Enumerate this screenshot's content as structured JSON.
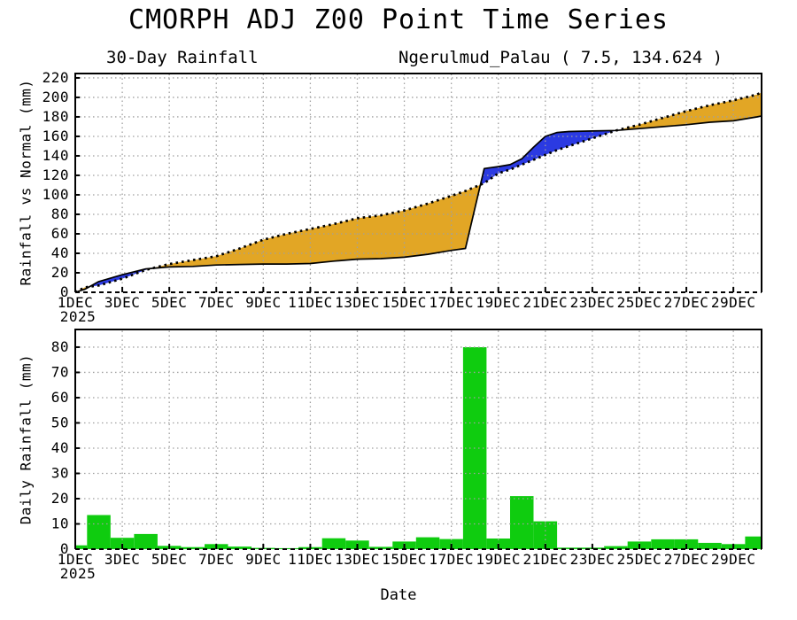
{
  "title": "CMORPH ADJ Z00 Point Time Series",
  "xlabel": "Date",
  "year_label": "2025",
  "chart_data": [
    {
      "type": "line",
      "title": "30-Day Rainfall",
      "station": "Ngerulmud_Palau ( 7.5, 134.624 )",
      "ylabel": "Rainfall vs Normal (mm)",
      "ylim": [
        0,
        224.5
      ],
      "xlim": [
        1,
        30.2
      ],
      "yticks": [
        0,
        20,
        40,
        60,
        80,
        100,
        120,
        140,
        160,
        180,
        200,
        220
      ],
      "xtick_days": [
        1,
        3,
        5,
        7,
        9,
        11,
        13,
        15,
        17,
        19,
        21,
        23,
        25,
        27,
        29
      ],
      "xtick_labels": [
        "1DEC",
        "3DEC",
        "5DEC",
        "7DEC",
        "9DEC",
        "11DEC",
        "13DEC",
        "15DEC",
        "17DEC",
        "19DEC",
        "21DEC",
        "23DEC",
        "25DEC",
        "27DEC",
        "29DEC"
      ],
      "grid": true,
      "x": [
        1,
        1.4,
        2,
        3,
        4,
        5,
        6,
        7,
        8,
        9,
        10,
        11,
        12,
        13,
        14,
        15,
        16,
        17,
        17.6,
        18.4,
        19,
        19.5,
        20,
        20.5,
        21,
        21.5,
        22,
        23,
        24,
        25,
        26,
        27,
        28,
        29,
        30,
        30.2
      ],
      "series": [
        {
          "name": "observed_cumulative_rainfall",
          "style": "solid",
          "color": "#000000",
          "values": [
            0,
            3,
            11,
            18,
            24,
            26,
            26.5,
            28,
            28.5,
            29,
            29,
            29.5,
            32,
            34,
            34.5,
            36,
            39,
            43,
            45,
            127,
            129,
            131,
            137,
            149,
            160,
            164,
            165,
            165.5,
            166.1,
            168,
            170,
            172,
            174.5,
            176,
            180,
            181
          ]
        },
        {
          "name": "normal_cumulative_rainfall",
          "style": "dotted",
          "color": "#000000",
          "values": [
            0,
            5,
            7,
            14,
            23,
            29,
            33,
            37,
            45,
            54,
            60,
            65,
            70,
            76,
            79,
            84,
            91,
            99,
            104,
            112,
            122,
            126,
            131,
            136,
            141,
            146,
            150,
            158,
            166,
            172,
            179,
            186,
            192,
            197,
            203,
            205
          ]
        }
      ],
      "fill_colors": {
        "observed_above_normal": "#2B3AE2",
        "normal_above_observed": "#E2A625"
      },
      "grid_color": "#A0A0A0"
    },
    {
      "type": "bar",
      "ylabel": "Daily Rainfall (mm)",
      "xlabel": "Date",
      "ylim": [
        0,
        87
      ],
      "xlim": [
        1,
        30.2
      ],
      "yticks": [
        0,
        10,
        20,
        30,
        40,
        50,
        60,
        70,
        80
      ],
      "xtick_days": [
        1,
        3,
        5,
        7,
        9,
        11,
        13,
        15,
        17,
        19,
        21,
        23,
        25,
        27,
        29
      ],
      "xtick_labels": [
        "1DEC",
        "3DEC",
        "5DEC",
        "7DEC",
        "9DEC",
        "11DEC",
        "13DEC",
        "15DEC",
        "17DEC",
        "19DEC",
        "21DEC",
        "23DEC",
        "25DEC",
        "27DEC",
        "29DEC"
      ],
      "grid": true,
      "days": [
        1,
        2,
        3,
        4,
        5,
        6,
        7,
        8,
        9,
        10,
        11,
        12,
        13,
        14,
        15,
        16,
        17,
        18,
        19,
        20,
        21,
        22,
        23,
        24,
        25,
        26,
        27,
        28,
        29,
        30
      ],
      "categories": [
        "1DEC",
        "2DEC",
        "3DEC",
        "4DEC",
        "5DEC",
        "6DEC",
        "7DEC",
        "8DEC",
        "9DEC",
        "10DEC",
        "11DEC",
        "12DEC",
        "13DEC",
        "14DEC",
        "15DEC",
        "16DEC",
        "17DEC",
        "18DEC",
        "19DEC",
        "20DEC",
        "21DEC",
        "22DEC",
        "23DEC",
        "24DEC",
        "25DEC",
        "26DEC",
        "27DEC",
        "28DEC",
        "29DEC",
        "30DEC"
      ],
      "values": [
        1.5,
        13.5,
        4.5,
        6,
        1.3,
        0.8,
        2,
        1,
        0.5,
        0.4,
        0.8,
        4.3,
        3.4,
        0.9,
        3,
        4.7,
        4,
        80,
        4.2,
        21,
        11,
        0.6,
        0.6,
        1.2,
        3,
        3.9,
        3.9,
        2.5,
        2,
        5
      ],
      "bar_color": "#0FCC0F",
      "grid_color": "#A0A0A0"
    }
  ]
}
